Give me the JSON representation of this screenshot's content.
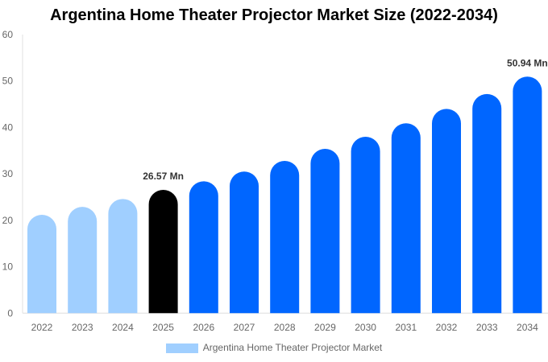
{
  "chart_data": {
    "type": "bar",
    "title": "Argentina Home Theater Projector Market Size (2022-2034)",
    "categories": [
      "2022",
      "2023",
      "2024",
      "2025",
      "2026",
      "2027",
      "2028",
      "2029",
      "2030",
      "2031",
      "2032",
      "2033",
      "2034"
    ],
    "series": [
      {
        "name": "Argentina Home Theater Projector Market",
        "values": [
          21.2,
          22.9,
          24.6,
          26.57,
          28.4,
          30.5,
          32.8,
          35.4,
          38.0,
          40.9,
          44.0,
          47.2,
          50.94
        ]
      }
    ],
    "data_labels": {
      "3": "26.57 Mn",
      "12": "50.94 Mn"
    },
    "ylim": [
      0,
      60
    ],
    "yticks": [
      0,
      10,
      20,
      30,
      40,
      50,
      60
    ],
    "xlabel": "",
    "ylabel": "",
    "grid": false,
    "legend": "bottom",
    "colors": {
      "historical": "#a0cfff",
      "current": "#000000",
      "forecast": "#0066ff"
    }
  }
}
